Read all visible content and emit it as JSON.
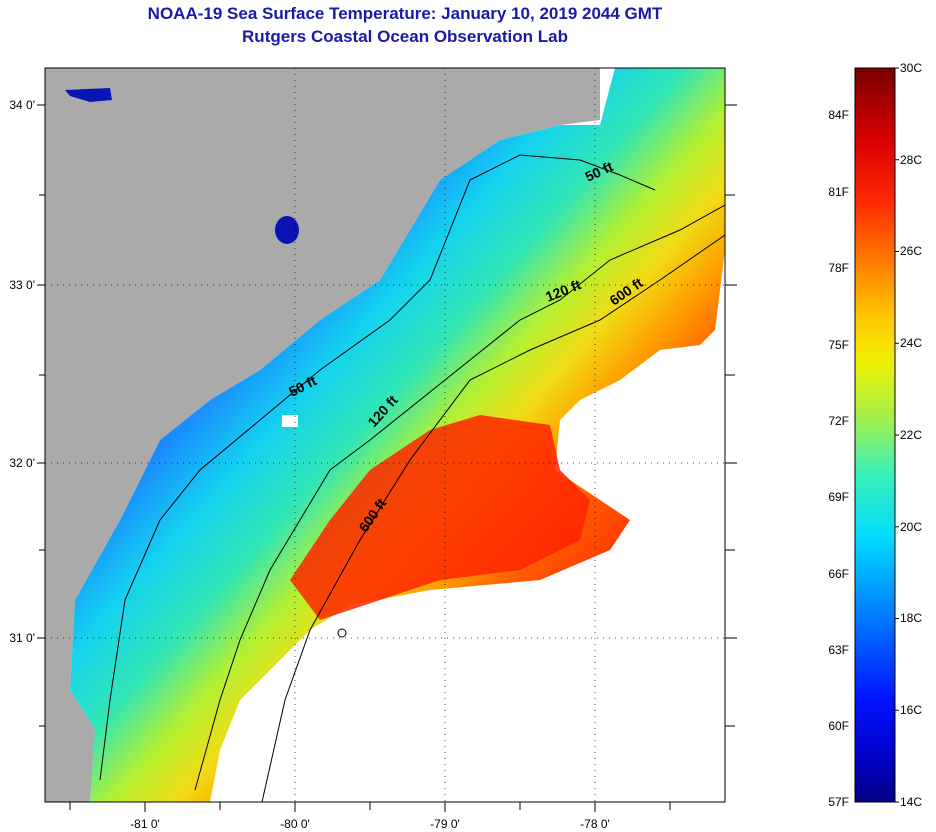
{
  "header": {
    "title": "NOAA-19 Sea Surface Temperature:  January 10, 2019 2044 GMT",
    "subtitle": "Rutgers Coastal Ocean Observation Lab"
  },
  "map": {
    "lon_labels": [
      "-81 0'",
      "-80 0'",
      "-79 0'",
      "-78 0'"
    ],
    "lat_labels": [
      "34 0'",
      "33 0'",
      "32 0'",
      "31 0'"
    ],
    "contours": [
      {
        "label": "50 ft",
        "rotation": -25
      },
      {
        "label": "120 ft",
        "rotation": -22
      },
      {
        "label": "600 ft",
        "rotation": -35
      },
      {
        "label": "50 ft",
        "rotation": -27
      },
      {
        "label": "120 ft",
        "rotation": -48
      },
      {
        "label": "600 ft",
        "rotation": -55
      }
    ],
    "colors": {
      "land": "#aaaaaa",
      "cold": "#0a1ee0",
      "warm": "#ff2a00",
      "no_data": "#ffffff"
    }
  },
  "colorbar": {
    "fahrenheit_labels": [
      "84F",
      "81F",
      "78F",
      "75F",
      "72F",
      "69F",
      "66F",
      "63F",
      "60F",
      "57F"
    ],
    "celsius_labels": [
      "30C",
      "28C",
      "26C",
      "24C",
      "22C",
      "20C",
      "18C",
      "16C",
      "14C"
    ],
    "range_c": [
      14,
      30
    ]
  }
}
